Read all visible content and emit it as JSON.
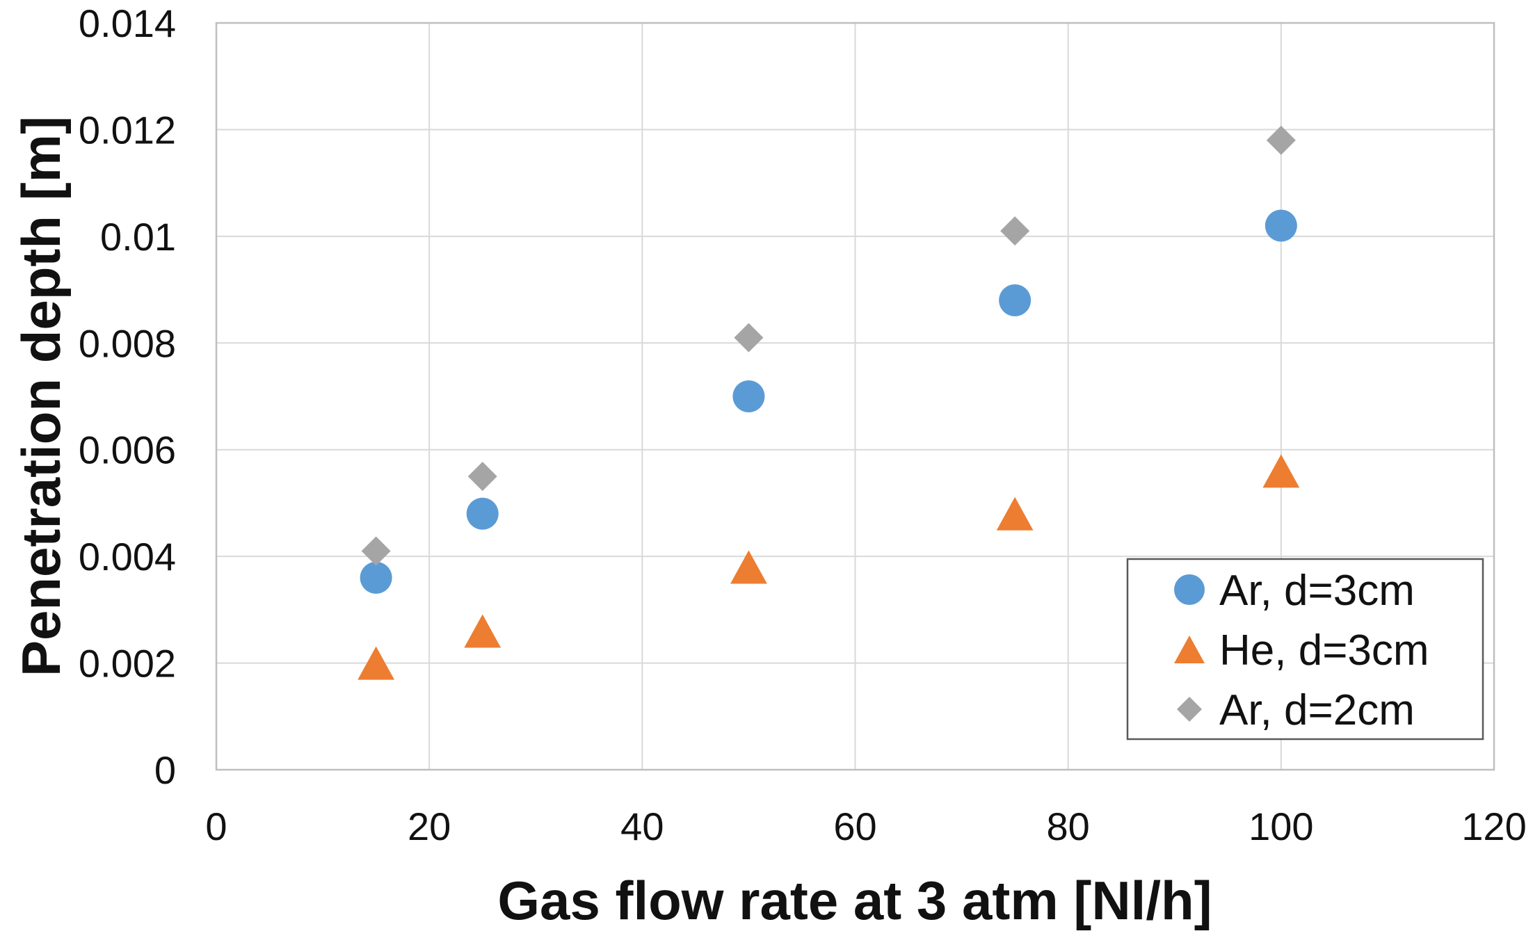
{
  "figure": {
    "background": "#FFFFFF"
  },
  "chart_data": {
    "type": "scatter",
    "title": "",
    "xlabel": "Gas flow rate at 3 atm [Nl/h]",
    "ylabel": "Penetration depth [m]",
    "xlim": [
      0,
      120
    ],
    "ylim": [
      0,
      0.014
    ],
    "x_ticks": [
      0,
      20,
      40,
      60,
      80,
      100,
      120
    ],
    "x_tick_labels": [
      "0",
      "20",
      "40",
      "60",
      "80",
      "100",
      "120"
    ],
    "y_ticks": [
      0,
      0.002,
      0.004,
      0.006,
      0.008,
      0.01,
      0.012,
      0.014
    ],
    "y_tick_labels": [
      "0",
      "0.002",
      "0.004",
      "0.006",
      "0.008",
      "0.01",
      "0.012",
      "0.014"
    ],
    "grid": true,
    "legend_position": "inside-bottom-right",
    "x": [
      15,
      25,
      50,
      75,
      100
    ],
    "series": [
      {
        "name": "Ar, d=3cm",
        "marker": "circle",
        "color": "#5B9BD5",
        "values": [
          0.0036,
          0.0048,
          0.007,
          0.0088,
          0.0102
        ]
      },
      {
        "name": "He, d=3cm",
        "marker": "triangle",
        "color": "#ED7D31",
        "values": [
          0.002,
          0.0026,
          0.0038,
          0.0048,
          0.0056
        ]
      },
      {
        "name": "Ar, d=2cm",
        "marker": "diamond",
        "color": "#A5A5A5",
        "values": [
          0.0041,
          0.0055,
          0.0081,
          0.0101,
          0.0118
        ]
      }
    ],
    "colors": {
      "gridline": "#D9D9D9",
      "plot_border": "#BFBFBF",
      "legend_border": "#595959",
      "legend_fill": "#FFFFFF",
      "text": "#111111"
    }
  }
}
